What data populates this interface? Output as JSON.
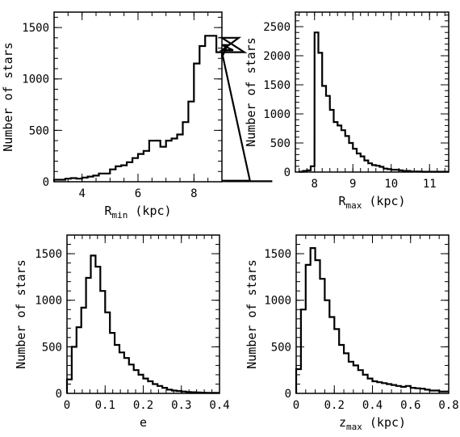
{
  "chart_data": [
    {
      "type": "histogram",
      "xlabel": "R",
      "xlabel_sub": "min",
      "xlabel_rest": "(kpc)",
      "ylabel": "Number of stars",
      "xlim": [
        3,
        9
      ],
      "ylim": [
        0,
        1650
      ],
      "xticks": [
        4,
        6,
        8
      ],
      "yticks": [
        0,
        500,
        1000,
        1500
      ],
      "xmajor": 2,
      "xminor": 0.5,
      "ymajor": 500,
      "yminor": 100,
      "bin_start": 3.0,
      "bin_width": 0.2,
      "counts": [
        20,
        20,
        30,
        35,
        30,
        40,
        50,
        60,
        80,
        80,
        120,
        150,
        160,
        190,
        230,
        270,
        300,
        400,
        400,
        340,
        400,
        420,
        460,
        580,
        780,
        1150,
        1320,
        1420,
        1420,
        1260,
        1210,
        1330,
        1280,
        1400,
        1260,
        10,
        5,
        5,
        5,
        5
      ]
    },
    {
      "type": "histogram",
      "xlabel": "R",
      "xlabel_sub": "max",
      "xlabel_rest": "(kpc)",
      "ylabel": "Number of stars",
      "xlim": [
        7.5,
        11.5
      ],
      "ylim": [
        0,
        2750
      ],
      "xticks": [
        8,
        9,
        10,
        11
      ],
      "yticks": [
        0,
        500,
        1000,
        1500,
        2000,
        2500
      ],
      "xmajor": 1,
      "xminor": 0.2,
      "ymajor": 500,
      "yminor": 100,
      "bin_start": 7.6,
      "bin_width": 0.1,
      "counts": [
        5,
        20,
        30,
        100,
        2400,
        2050,
        1480,
        1310,
        1070,
        860,
        800,
        720,
        620,
        500,
        400,
        320,
        270,
        200,
        150,
        120,
        110,
        90,
        60,
        50,
        40,
        40,
        30,
        20,
        20,
        10,
        10,
        10,
        5,
        5,
        5,
        5,
        5,
        5,
        5
      ]
    },
    {
      "type": "histogram",
      "xlabel": "e",
      "xlabel_sub": "",
      "xlabel_rest": "",
      "ylabel": "Number of stars",
      "xlim": [
        0,
        0.4
      ],
      "ylim": [
        0,
        1700
      ],
      "xticks": [
        0,
        0.1,
        0.2,
        0.3,
        0.4
      ],
      "yticks": [
        0,
        500,
        1000,
        1500
      ],
      "xmajor": 0.1,
      "xminor": 0.02,
      "ymajor": 500,
      "yminor": 100,
      "bin_start": 0.0,
      "bin_width": 0.0125,
      "counts": [
        150,
        500,
        710,
        920,
        1240,
        1480,
        1360,
        1100,
        870,
        650,
        520,
        440,
        380,
        310,
        250,
        200,
        160,
        130,
        100,
        80,
        60,
        40,
        30,
        25,
        20,
        15,
        12,
        10,
        8,
        6,
        5,
        5
      ]
    },
    {
      "type": "histogram",
      "xlabel": "z",
      "xlabel_sub": "max",
      "xlabel_rest": "(kpc)",
      "ylabel": "Number of stars",
      "xlim": [
        0,
        0.8
      ],
      "ylim": [
        0,
        1700
      ],
      "xticks": [
        0,
        0.2,
        0.4,
        0.6,
        0.8
      ],
      "yticks": [
        0,
        500,
        1000,
        1500
      ],
      "xmajor": 0.2,
      "xminor": 0.05,
      "ymajor": 500,
      "yminor": 100,
      "bin_start": 0.0,
      "bin_width": 0.025,
      "counts": [
        260,
        900,
        1380,
        1560,
        1430,
        1230,
        1000,
        820,
        690,
        520,
        430,
        340,
        300,
        250,
        200,
        160,
        130,
        120,
        110,
        100,
        90,
        80,
        70,
        80,
        60,
        55,
        50,
        40,
        30,
        30,
        20,
        20
      ]
    }
  ]
}
